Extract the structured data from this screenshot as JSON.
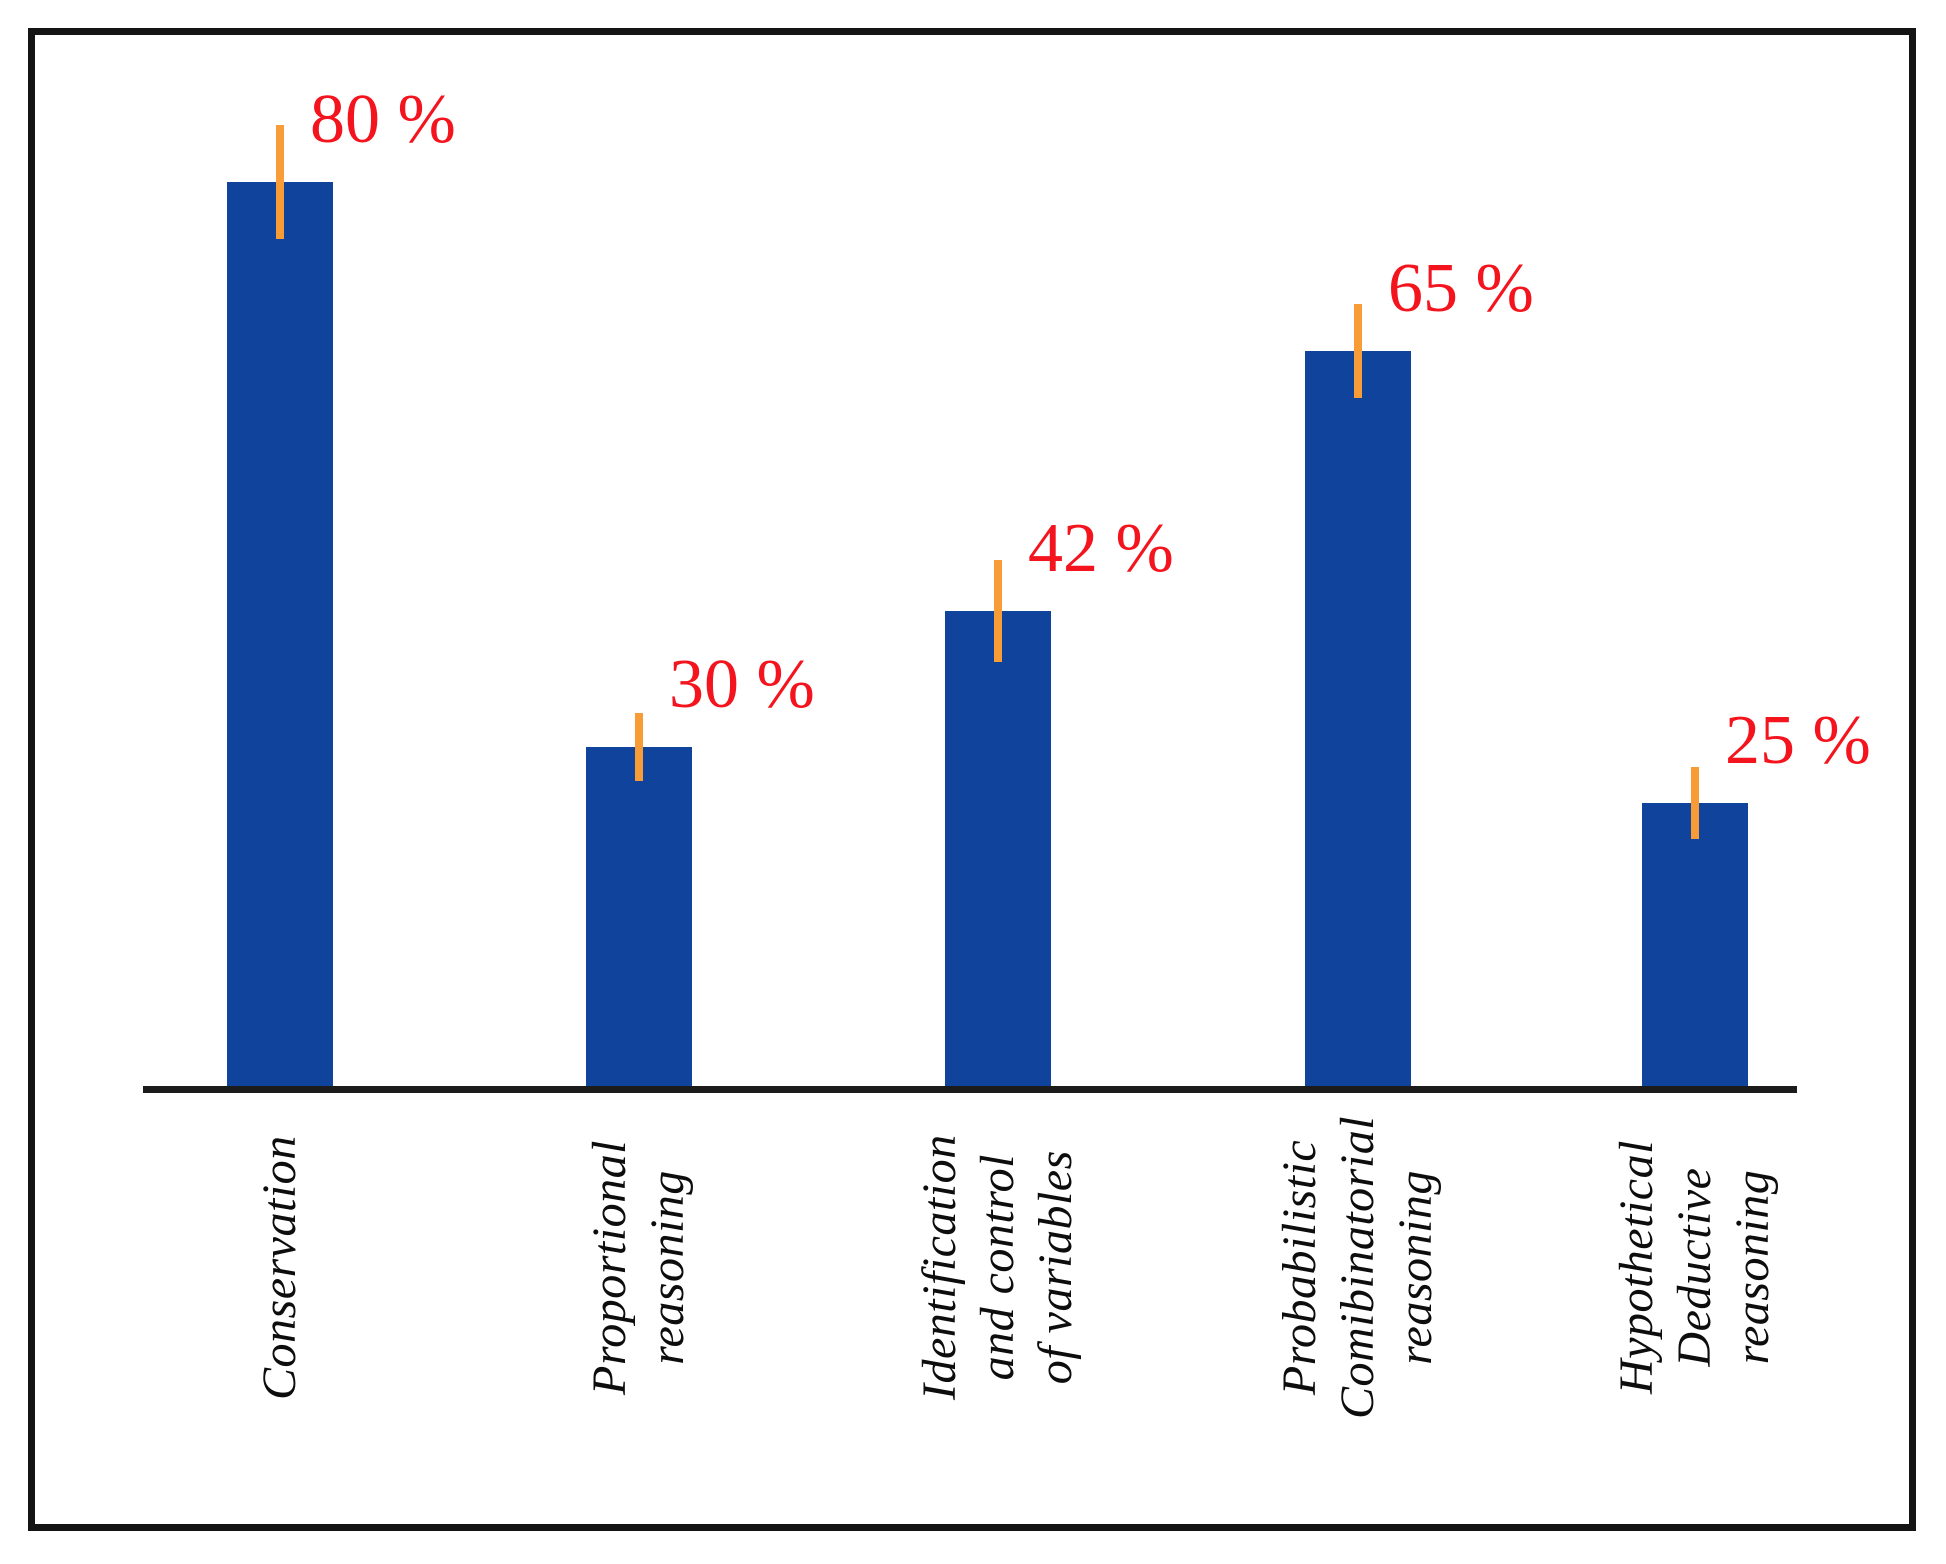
{
  "figure": {
    "background": "#FFFFFF",
    "border_color": "#141414"
  },
  "chart_data": {
    "type": "bar",
    "title": "",
    "xlabel": "",
    "ylabel": "",
    "categories": [
      "Conservation",
      "Proportional reasoning",
      "Identification and control of variables",
      "Probabilistic Comibinatorial reasoning",
      "Hypothetical Deductive reasoning"
    ],
    "category_lines": [
      [
        "Conservation"
      ],
      [
        "Proportional",
        "reasoning"
      ],
      [
        "Identification",
        "and control",
        "of variables"
      ],
      [
        "Probabilistic",
        "Comibinatorial",
        "reasoning"
      ],
      [
        "Hypothetical",
        "Deductive",
        "reasoning"
      ]
    ],
    "values": [
      80,
      30,
      42,
      65,
      25
    ],
    "value_labels": [
      "80 %",
      "30 %",
      "42 %",
      "65 %",
      "25 %"
    ],
    "error_bars_pct": [
      5,
      3,
      4.5,
      4.2,
      3.2
    ],
    "unit": "%",
    "ylim": [
      0,
      93
    ],
    "grid": false,
    "legend": false,
    "bar_orientation": "vertical",
    "category_label_rotation_deg": 90,
    "colors": {
      "bar": "#10439B",
      "error_bar": "#F89C38",
      "value_label": "#F3141E",
      "axis": "#1B1B1B",
      "category_label": "#0D0D0D",
      "frame_border": "#141414"
    }
  }
}
